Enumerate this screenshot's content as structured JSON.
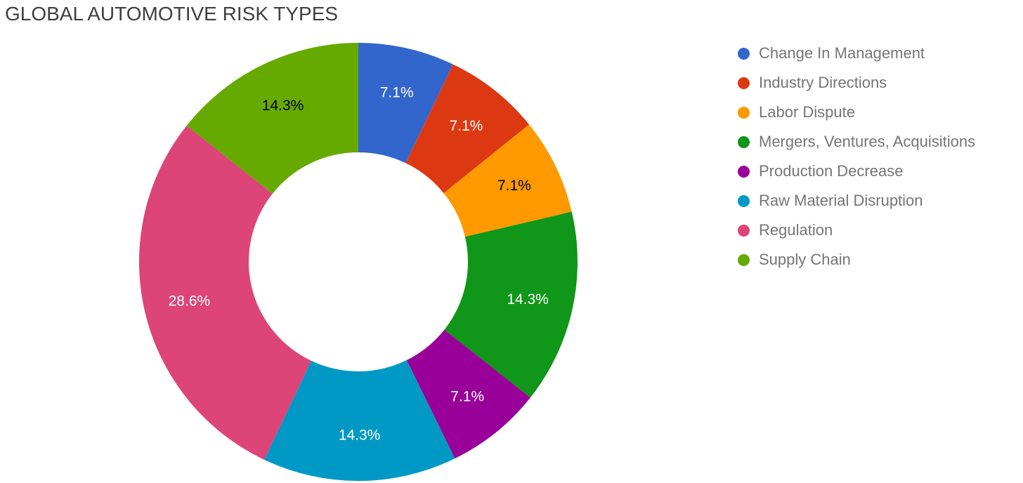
{
  "title": "GLOBAL AUTOMOTIVE RISK TYPES",
  "colors": {
    "background": "#FFFFFF",
    "title_text": "#3F3F3F",
    "legend_text": "#757575"
  },
  "chart_data": {
    "type": "pie",
    "subtype": "donut",
    "title": "GLOBAL AUTOMOTIVE RISK TYPES",
    "legend_position": "right",
    "hole_ratio": 0.5,
    "start_angle_deg": 0,
    "direction": "clockwise",
    "slices": [
      {
        "label": "Change In Management",
        "value": 7.1,
        "display": "7.1%",
        "color": "#3366CC",
        "text_color": "#FFFFFF"
      },
      {
        "label": "Industry Directions",
        "value": 7.1,
        "display": "7.1%",
        "color": "#DC3912",
        "text_color": "#FFFFFF"
      },
      {
        "label": "Labor Dispute",
        "value": 7.1,
        "display": "7.1%",
        "color": "#FF9900",
        "text_color": "#000000"
      },
      {
        "label": "Mergers, Ventures, Acquisitions",
        "value": 14.3,
        "display": "14.3%",
        "color": "#109618",
        "text_color": "#FFFFFF"
      },
      {
        "label": "Production Decrease",
        "value": 7.1,
        "display": "7.1%",
        "color": "#990099",
        "text_color": "#FFFFFF"
      },
      {
        "label": "Raw Material Disruption",
        "value": 14.3,
        "display": "14.3%",
        "color": "#0099C6",
        "text_color": "#FFFFFF"
      },
      {
        "label": "Regulation",
        "value": 28.6,
        "display": "28.6%",
        "color": "#DD4477",
        "text_color": "#FFFFFF"
      },
      {
        "label": "Supply Chain",
        "value": 14.3,
        "display": "14.3%",
        "color": "#66AA00",
        "text_color": "#000000"
      }
    ]
  }
}
